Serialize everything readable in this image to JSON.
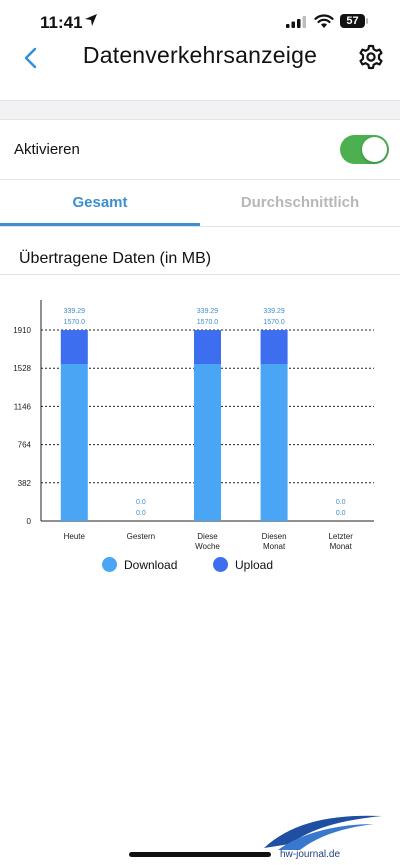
{
  "status_bar": {
    "time": "11:41",
    "battery": "57"
  },
  "nav": {
    "title": "Datenverkehrsanzeige",
    "back_icon": "chevron-left-icon",
    "settings_icon": "gear-icon"
  },
  "activate": {
    "label": "Aktivieren",
    "enabled": true
  },
  "tabs": [
    {
      "label": "Gesamt",
      "active": true
    },
    {
      "label": "Durchschnittlich",
      "active": false
    }
  ],
  "section_title": "Übertragene Daten (in MB)",
  "colors": {
    "accent": "#3d8fd0",
    "download": "#4aa6f5",
    "upload": "#3d6ef0",
    "toggle_on": "#4cb050"
  },
  "chart_data": {
    "type": "bar",
    "stacked": true,
    "categories": [
      "Heute",
      "Gestern",
      "Diese Woche",
      "Diesen Monat",
      "Letzter Monat"
    ],
    "yticks": [
      "0",
      "382",
      "764",
      "1146",
      "1528",
      "1910"
    ],
    "ylim": [
      0,
      1910
    ],
    "grid": true,
    "legend_position": "bottom",
    "series": [
      {
        "name": "Download",
        "values": [
          1570.0,
          0.0,
          1570.0,
          1570.0,
          0.0
        ],
        "labels": [
          "1570.0",
          "0.0",
          "1570.0",
          "1570.0",
          "0.0"
        ]
      },
      {
        "name": "Upload",
        "values": [
          339.29,
          0.0,
          339.29,
          339.29,
          0.0
        ],
        "labels": [
          "339.29",
          "0.0",
          "339.29",
          "339.29",
          "0.0"
        ]
      }
    ]
  },
  "watermark": "hw-journal.de"
}
